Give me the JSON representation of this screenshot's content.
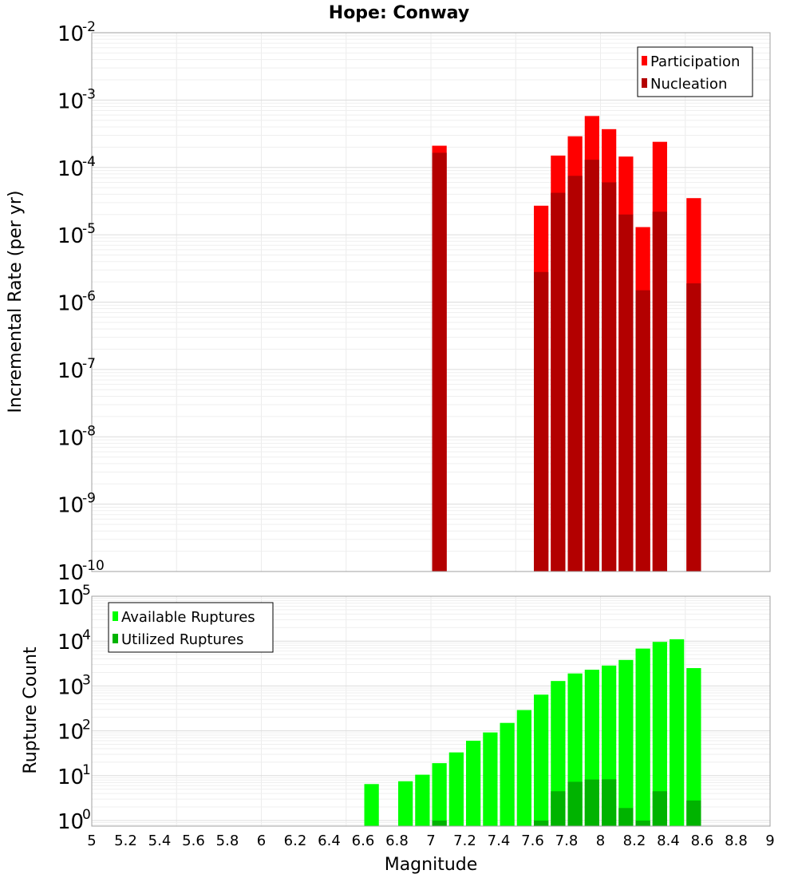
{
  "figure": {
    "title": "Hope: Conway",
    "xlabel": "Magnitude"
  },
  "chart_data": [
    {
      "type": "bar",
      "title": "Hope: Conway",
      "ylabel": "Incremental Rate (per yr)",
      "xlabel": "Magnitude",
      "yscale": "log",
      "xlim": [
        5,
        9
      ],
      "ylim": [
        1e-10,
        0.01
      ],
      "x_ticks": [
        "5",
        "5.2",
        "5.4",
        "5.6",
        "5.8",
        "6",
        "6.2",
        "6.4",
        "6.6",
        "6.8",
        "7",
        "7.2",
        "7.4",
        "7.6",
        "7.8",
        "8",
        "8.2",
        "8.4",
        "8.6",
        "8.8",
        "9"
      ],
      "y_tick_exponents": [
        "-2",
        "-3",
        "-4",
        "-5",
        "-6",
        "-7",
        "-8",
        "-9",
        "-10"
      ],
      "y_tick_base": "10",
      "legend_position": "top-right",
      "grid": true,
      "bin_width": 0.1,
      "x": [
        7.05,
        7.65,
        7.75,
        7.85,
        7.95,
        8.05,
        8.15,
        8.25,
        8.35,
        8.55
      ],
      "series": [
        {
          "name": "Participation",
          "color": "#ff0000",
          "values": [
            0.00021,
            2.7e-05,
            0.00015,
            0.00029,
            0.00058,
            0.00037,
            0.000145,
            1.3e-05,
            0.00024,
            3.5e-05
          ]
        },
        {
          "name": "Nucleation",
          "color": "#b30000",
          "values": [
            0.000165,
            2.8e-06,
            4.2e-05,
            7.5e-05,
            0.00013,
            6e-05,
            2e-05,
            1.5e-06,
            2.2e-05,
            1.9e-06
          ]
        }
      ]
    },
    {
      "type": "bar",
      "ylabel": "Rupture Count",
      "xlabel": "Magnitude",
      "yscale": "log",
      "xlim": [
        5,
        9
      ],
      "ylim": [
        0.75,
        100000
      ],
      "y_tick_exponents": [
        "5",
        "4",
        "3",
        "2",
        "1",
        "0"
      ],
      "y_tick_base": "10",
      "legend_position": "top-left",
      "grid": true,
      "bin_width": 0.1,
      "x": [
        6.65,
        6.85,
        6.95,
        7.05,
        7.15,
        7.25,
        7.35,
        7.45,
        7.55,
        7.65,
        7.75,
        7.85,
        7.95,
        8.05,
        8.15,
        8.25,
        8.35,
        8.45,
        8.55
      ],
      "series": [
        {
          "name": "Available Ruptures",
          "color": "#00ff00",
          "values": [
            6.5,
            7.5,
            10.5,
            19,
            33,
            60,
            92,
            150,
            290,
            640,
            1290,
            1900,
            2300,
            2850,
            3800,
            6800,
            9600,
            11000,
            2500
          ]
        },
        {
          "name": "Utilized Ruptures",
          "color": "#00b300",
          "values": [
            null,
            null,
            null,
            1,
            null,
            null,
            null,
            null,
            null,
            1,
            4.5,
            7.3,
            8.2,
            8.3,
            1.9,
            1,
            4.5,
            null,
            2.8
          ]
        }
      ]
    }
  ]
}
